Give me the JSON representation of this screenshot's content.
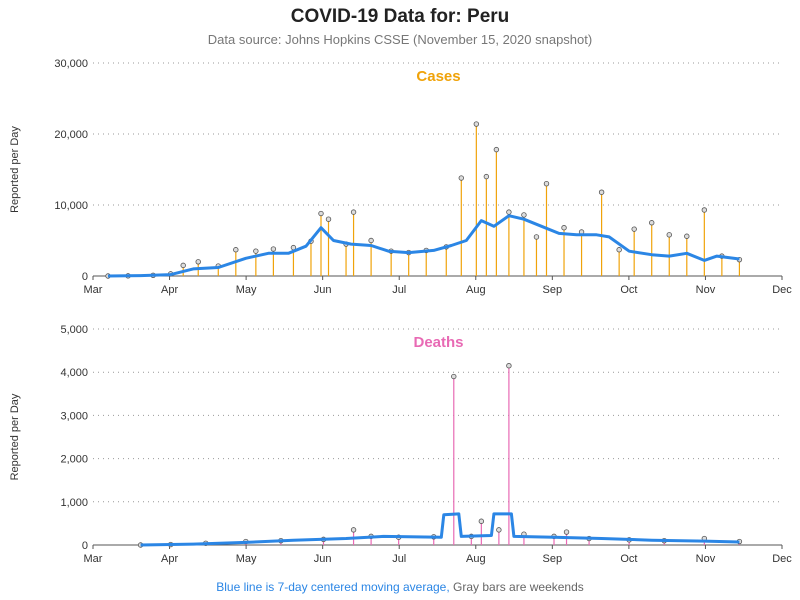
{
  "title": "COVID-19 Data for: Peru",
  "subtitle": "Data source: Johns Hopkins CSSE (November 15, 2020 snapshot)",
  "footer": {
    "ma_note": "Blue line is 7-day centered moving average,",
    "weekend_note": "Gray bars are weekends"
  },
  "colors": {
    "cases": "#f0a30a",
    "deaths": "#e86ab4",
    "moving_average": "#2b86e5",
    "weekend": "#888888"
  },
  "chart_data": [
    {
      "type": "bar",
      "title": "Cases",
      "ylabel": "Reported per Day",
      "x_ticks": [
        "Mar",
        "Apr",
        "May",
        "Jun",
        "Jul",
        "Aug",
        "Sep",
        "Oct",
        "Nov",
        "Dec"
      ],
      "y_ticks": [
        "0",
        "10,000",
        "20,000",
        "30,000"
      ],
      "ylim": [
        0,
        30000
      ],
      "xlim": [
        "2020-03-01",
        "2020-12-01"
      ],
      "grid": "horizontal dotted",
      "points": [
        [
          "2020-03-07",
          0
        ],
        [
          "2020-03-15",
          20
        ],
        [
          "2020-03-25",
          100
        ],
        [
          "2020-04-01",
          300
        ],
        [
          "2020-04-06",
          1500
        ],
        [
          "2020-04-12",
          2000
        ],
        [
          "2020-04-20",
          1400
        ],
        [
          "2020-04-27",
          3700
        ],
        [
          "2020-05-05",
          3500
        ],
        [
          "2020-05-12",
          3800
        ],
        [
          "2020-05-20",
          4000
        ],
        [
          "2020-05-27",
          4900
        ],
        [
          "2020-05-31",
          8800
        ],
        [
          "2020-06-03",
          8000
        ],
        [
          "2020-06-10",
          4500
        ],
        [
          "2020-06-13",
          9000
        ],
        [
          "2020-06-20",
          5000
        ],
        [
          "2020-06-28",
          3500
        ],
        [
          "2020-07-05",
          3300
        ],
        [
          "2020-07-12",
          3600
        ],
        [
          "2020-07-20",
          4100
        ],
        [
          "2020-07-26",
          13800
        ],
        [
          "2020-08-01",
          21400
        ],
        [
          "2020-08-05",
          14000
        ],
        [
          "2020-08-09",
          17800
        ],
        [
          "2020-08-14",
          9000
        ],
        [
          "2020-08-20",
          8600
        ],
        [
          "2020-08-25",
          5500
        ],
        [
          "2020-08-29",
          13000
        ],
        [
          "2020-09-05",
          6800
        ],
        [
          "2020-09-12",
          6200
        ],
        [
          "2020-09-20",
          11800
        ],
        [
          "2020-09-27",
          3700
        ],
        [
          "2020-10-03",
          6600
        ],
        [
          "2020-10-10",
          7500
        ],
        [
          "2020-10-17",
          5800
        ],
        [
          "2020-10-24",
          5600
        ],
        [
          "2020-10-31",
          9300
        ],
        [
          "2020-11-07",
          2800
        ],
        [
          "2020-11-14",
          2300
        ]
      ],
      "moving_average": [
        [
          "2020-03-07",
          0
        ],
        [
          "2020-03-20",
          50
        ],
        [
          "2020-04-01",
          200
        ],
        [
          "2020-04-10",
          1000
        ],
        [
          "2020-04-20",
          1200
        ],
        [
          "2020-05-01",
          2500
        ],
        [
          "2020-05-10",
          3200
        ],
        [
          "2020-05-18",
          3200
        ],
        [
          "2020-05-25",
          4200
        ],
        [
          "2020-05-31",
          6800
        ],
        [
          "2020-06-05",
          5000
        ],
        [
          "2020-06-12",
          4500
        ],
        [
          "2020-06-20",
          4300
        ],
        [
          "2020-06-27",
          3500
        ],
        [
          "2020-07-05",
          3300
        ],
        [
          "2020-07-15",
          3600
        ],
        [
          "2020-07-22",
          4300
        ],
        [
          "2020-07-28",
          5000
        ],
        [
          "2020-08-03",
          7800
        ],
        [
          "2020-08-08",
          7000
        ],
        [
          "2020-08-14",
          8500
        ],
        [
          "2020-08-20",
          8000
        ],
        [
          "2020-08-27",
          7000
        ],
        [
          "2020-09-03",
          6000
        ],
        [
          "2020-09-10",
          5800
        ],
        [
          "2020-09-18",
          5800
        ],
        [
          "2020-09-23",
          5500
        ],
        [
          "2020-10-01",
          3500
        ],
        [
          "2020-10-10",
          3000
        ],
        [
          "2020-10-17",
          2800
        ],
        [
          "2020-10-24",
          3200
        ],
        [
          "2020-10-31",
          2200
        ],
        [
          "2020-11-05",
          2800
        ],
        [
          "2020-11-14",
          2400
        ]
      ]
    },
    {
      "type": "bar",
      "title": "Deaths",
      "ylabel": "Reported per Day",
      "x_ticks": [
        "Mar",
        "Apr",
        "May",
        "Jun",
        "Jul",
        "Aug",
        "Sep",
        "Oct",
        "Nov",
        "Dec"
      ],
      "y_ticks": [
        "0",
        "1,000",
        "2,000",
        "3,000",
        "4,000",
        "5,000"
      ],
      "ylim": [
        0,
        5000
      ],
      "xlim": [
        "2020-03-01",
        "2020-12-01"
      ],
      "grid": "horizontal dotted",
      "points": [
        [
          "2020-03-20",
          0
        ],
        [
          "2020-04-01",
          10
        ],
        [
          "2020-04-15",
          40
        ],
        [
          "2020-05-01",
          80
        ],
        [
          "2020-05-15",
          100
        ],
        [
          "2020-06-01",
          130
        ],
        [
          "2020-06-13",
          350
        ],
        [
          "2020-06-20",
          200
        ],
        [
          "2020-07-01",
          180
        ],
        [
          "2020-07-15",
          190
        ],
        [
          "2020-07-23",
          3900
        ],
        [
          "2020-07-30",
          200
        ],
        [
          "2020-08-03",
          550
        ],
        [
          "2020-08-10",
          350
        ],
        [
          "2020-08-14",
          4150
        ],
        [
          "2020-08-20",
          250
        ],
        [
          "2020-09-01",
          200
        ],
        [
          "2020-09-06",
          300
        ],
        [
          "2020-09-15",
          150
        ],
        [
          "2020-10-01",
          120
        ],
        [
          "2020-10-15",
          100
        ],
        [
          "2020-10-31",
          150
        ],
        [
          "2020-11-14",
          80
        ]
      ],
      "moving_average": [
        [
          "2020-03-20",
          0
        ],
        [
          "2020-04-10",
          20
        ],
        [
          "2020-05-01",
          60
        ],
        [
          "2020-05-20",
          110
        ],
        [
          "2020-06-10",
          150
        ],
        [
          "2020-06-25",
          200
        ],
        [
          "2020-07-05",
          190
        ],
        [
          "2020-07-18",
          180
        ],
        [
          "2020-07-19",
          700
        ],
        [
          "2020-07-25",
          720
        ],
        [
          "2020-07-26",
          200
        ],
        [
          "2020-08-07",
          220
        ],
        [
          "2020-08-08",
          720
        ],
        [
          "2020-08-15",
          720
        ],
        [
          "2020-08-16",
          200
        ],
        [
          "2020-09-01",
          180
        ],
        [
          "2020-09-20",
          150
        ],
        [
          "2020-10-10",
          110
        ],
        [
          "2020-10-31",
          90
        ],
        [
          "2020-11-14",
          70
        ]
      ]
    }
  ]
}
